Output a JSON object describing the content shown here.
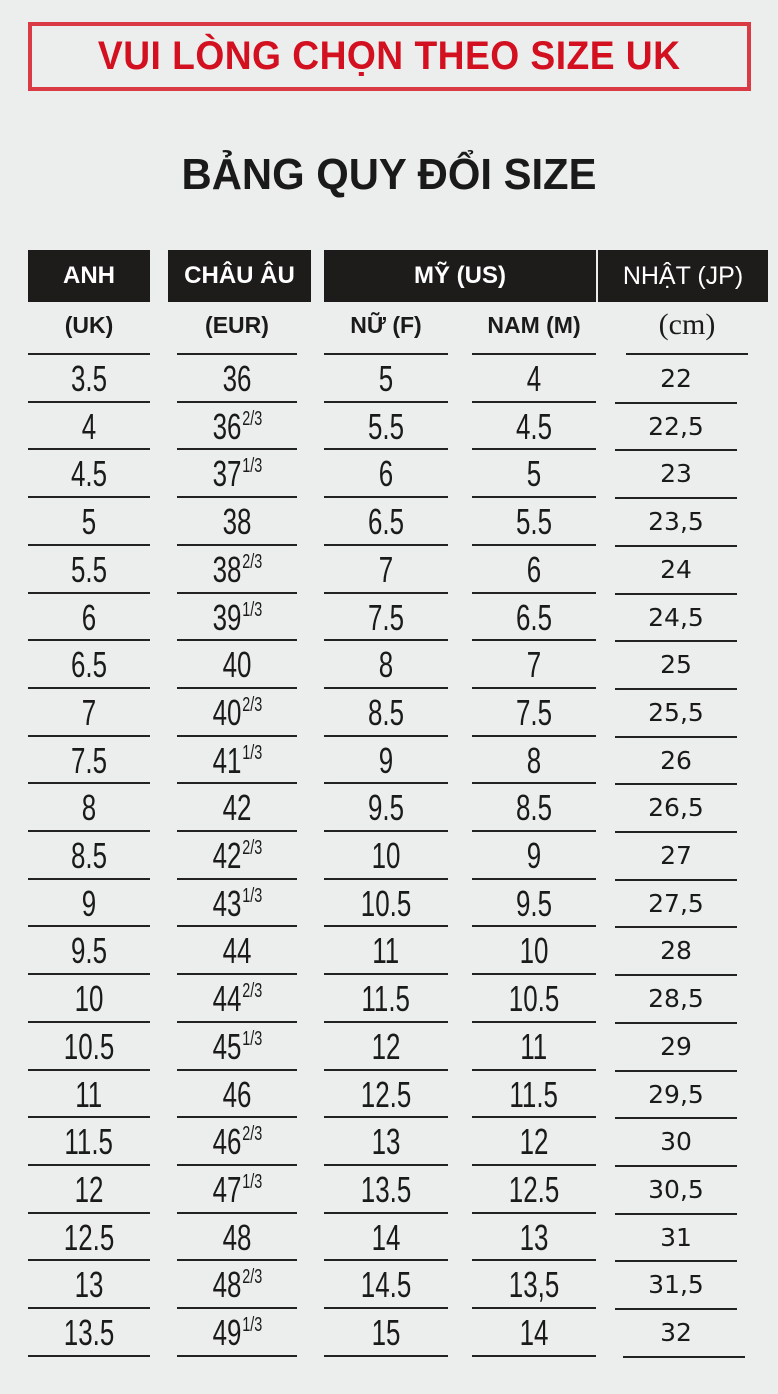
{
  "notice": "VUI LÒNG CHỌN THEO SIZE UK",
  "title": "BẢNG QUY ĐỔI SIZE",
  "headers": {
    "uk": "ANH",
    "eur": "CHÂU ÂU",
    "us": "MỸ (US)",
    "jp": "NHẬT (JP)"
  },
  "subheaders": {
    "uk": "(UK)",
    "eur": "(EUR)",
    "us_f": "NỮ (F)",
    "us_m": "NAM (M)",
    "jp": "(cm)"
  },
  "colors": {
    "notice": "#d2101f",
    "header_bg": "#1e1b1b",
    "background": "#eceeee"
  },
  "rows": [
    {
      "uk": "3.5",
      "eur": "36",
      "eur_frac": "",
      "us_f": "5",
      "us_m": "4",
      "jp": "22"
    },
    {
      "uk": "4",
      "eur": "36",
      "eur_frac": "2/3",
      "us_f": "5.5",
      "us_m": "4.5",
      "jp": "22,5"
    },
    {
      "uk": "4.5",
      "eur": "37",
      "eur_frac": "1/3",
      "us_f": "6",
      "us_m": "5",
      "jp": "23"
    },
    {
      "uk": "5",
      "eur": "38",
      "eur_frac": "",
      "us_f": "6.5",
      "us_m": "5.5",
      "jp": "23,5"
    },
    {
      "uk": "5.5",
      "eur": "38",
      "eur_frac": "2/3",
      "us_f": "7",
      "us_m": "6",
      "jp": "24"
    },
    {
      "uk": "6",
      "eur": "39",
      "eur_frac": "1/3",
      "us_f": "7.5",
      "us_m": "6.5",
      "jp": "24,5"
    },
    {
      "uk": "6.5",
      "eur": "40",
      "eur_frac": "",
      "us_f": "8",
      "us_m": "7",
      "jp": "25"
    },
    {
      "uk": "7",
      "eur": "40",
      "eur_frac": "2/3",
      "us_f": "8.5",
      "us_m": "7.5",
      "jp": "25,5"
    },
    {
      "uk": "7.5",
      "eur": "41",
      "eur_frac": "1/3",
      "us_f": "9",
      "us_m": "8",
      "jp": "26"
    },
    {
      "uk": "8",
      "eur": "42",
      "eur_frac": "",
      "us_f": "9.5",
      "us_m": "8.5",
      "jp": "26,5"
    },
    {
      "uk": "8.5",
      "eur": "42",
      "eur_frac": "2/3",
      "us_f": "10",
      "us_m": "9",
      "jp": "27"
    },
    {
      "uk": "9",
      "eur": "43",
      "eur_frac": "1/3",
      "us_f": "10.5",
      "us_m": "9.5",
      "jp": "27,5"
    },
    {
      "uk": "9.5",
      "eur": "44",
      "eur_frac": "",
      "us_f": "11",
      "us_m": "10",
      "jp": "28"
    },
    {
      "uk": "10",
      "eur": "44",
      "eur_frac": "2/3",
      "us_f": "11.5",
      "us_m": "10.5",
      "jp": "28,5"
    },
    {
      "uk": "10.5",
      "eur": "45",
      "eur_frac": "1/3",
      "us_f": "12",
      "us_m": "11",
      "jp": "29"
    },
    {
      "uk": "11",
      "eur": "46",
      "eur_frac": "",
      "us_f": "12.5",
      "us_m": "11.5",
      "jp": "29,5"
    },
    {
      "uk": "11.5",
      "eur": "46",
      "eur_frac": "2/3",
      "us_f": "13",
      "us_m": "12",
      "jp": "30"
    },
    {
      "uk": "12",
      "eur": "47",
      "eur_frac": "1/3",
      "us_f": "13.5",
      "us_m": "12.5",
      "jp": "30,5"
    },
    {
      "uk": "12.5",
      "eur": "48",
      "eur_frac": "",
      "us_f": "14",
      "us_m": "13",
      "jp": "31"
    },
    {
      "uk": "13",
      "eur": "48",
      "eur_frac": "2/3",
      "us_f": "14.5",
      "us_m": "13,5",
      "jp": "31,5"
    },
    {
      "uk": "13.5",
      "eur": "49",
      "eur_frac": "1/3",
      "us_f": "15",
      "us_m": "14",
      "jp": "32"
    }
  ]
}
